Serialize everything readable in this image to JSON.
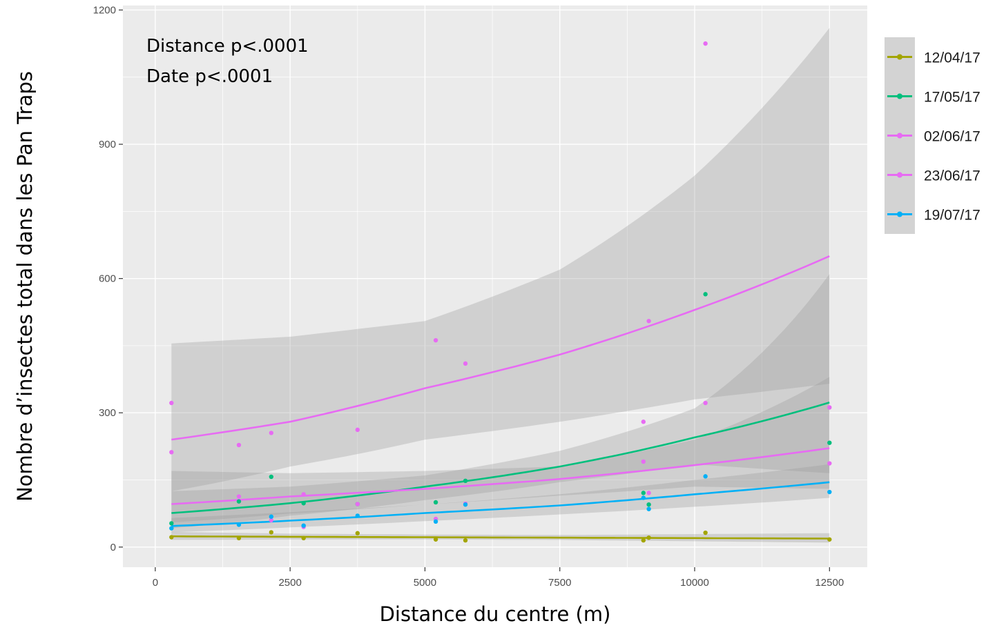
{
  "chart_data": {
    "type": "line",
    "title": "",
    "xlabel": "Distance du centre (m)",
    "ylabel": "Nombre d’insectes total dans les Pan Traps",
    "xlim": [
      -600,
      13200
    ],
    "ylim": [
      -45,
      1210
    ],
    "x_ticks": [
      0,
      2500,
      5000,
      7500,
      10000,
      12500
    ],
    "y_ticks": [
      0,
      300,
      600,
      900,
      1200
    ],
    "x_tick_labels": [
      "0",
      "2500",
      "5000",
      "7500",
      "10000",
      "12500"
    ],
    "y_tick_labels": [
      "0",
      "300",
      "600",
      "900",
      "1200"
    ],
    "grid": true,
    "legend_position": "right",
    "annotations": [
      "Distance p<.0001",
      "Date p<.0001"
    ],
    "series": [
      {
        "name": "12/04/17",
        "color": "#a3a500",
        "fit": {
          "x": [
            300,
            2500,
            5000,
            7500,
            10000,
            12500
          ],
          "y": [
            24,
            23,
            22,
            21,
            20,
            19
          ]
        },
        "ci_upper": [
          34,
          30,
          28,
          27,
          29,
          31
        ],
        "ci_lower": [
          16,
          17,
          17,
          16,
          13,
          10
        ],
        "points": {
          "x": [
            300,
            1550,
            2150,
            2750,
            3750,
            5200,
            5750,
            9050,
            9150,
            10200,
            12500
          ],
          "y": [
            22,
            20,
            33,
            20,
            31,
            17,
            15,
            15,
            21,
            32,
            17
          ]
        }
      },
      {
        "name": "17/05/17",
        "color": "#00bf7d",
        "fit": {
          "x": [
            300,
            2500,
            5000,
            7500,
            10000,
            12500
          ],
          "y": [
            76,
            98,
            135,
            180,
            245,
            323
          ]
        },
        "ci_upper": [
          125,
          135,
          160,
          215,
          310,
          610
        ],
        "ci_lower": [
          42,
          70,
          105,
          145,
          185,
          165
        ],
        "points": {
          "x": [
            300,
            1550,
            2150,
            2750,
            3750,
            5200,
            5750,
            9050,
            9150,
            10200,
            12500
          ],
          "y": [
            53,
            102,
            157,
            98,
            96,
            100,
            148,
            121,
            95,
            565,
            233
          ]
        }
      },
      {
        "name": "02/06/17",
        "color": "#e76bf3",
        "fit": {
          "x": [
            300,
            2500,
            5000,
            7500,
            10000,
            12500
          ],
          "y": [
            96,
            113,
            130,
            152,
            183,
            221
          ]
        },
        "ci_upper": [
          170,
          165,
          170,
          180,
          240,
          380
        ],
        "ci_lower": [
          55,
          75,
          95,
          115,
          135,
          130
        ],
        "points": {
          "x": [
            300,
            1550,
            2150,
            2750,
            3750,
            5200,
            5750,
            9050,
            9150,
            10200,
            12500
          ],
          "y": [
            212,
            113,
            60,
            45,
            96,
            63,
            97,
            191,
            121,
            322,
            187
          ]
        }
      },
      {
        "name": "23/06/17",
        "color": "#e76bf3",
        "fit": {
          "x": [
            300,
            2500,
            5000,
            7500,
            10000,
            12500
          ],
          "y": [
            240,
            280,
            355,
            430,
            530,
            650
          ]
        },
        "ci_upper": [
          455,
          470,
          505,
          620,
          830,
          1160
        ],
        "ci_lower": [
          125,
          180,
          240,
          280,
          330,
          365
        ],
        "points": {
          "x": [
            300,
            1550,
            2150,
            2750,
            3750,
            5200,
            5750,
            9050,
            9150,
            10200,
            12500
          ],
          "y": [
            322,
            228,
            255,
            118,
            262,
            462,
            410,
            280,
            505,
            1125,
            312
          ]
        }
      },
      {
        "name": "19/07/17",
        "color": "#00b0f6",
        "fit": {
          "x": [
            300,
            2500,
            5000,
            7500,
            10000,
            12500
          ],
          "y": [
            47,
            59,
            76,
            93,
            118,
            145
          ]
        },
        "ci_upper": [
          65,
          78,
          95,
          118,
          150,
          185
        ],
        "ci_lower": [
          33,
          44,
          58,
          73,
          90,
          110
        ],
        "points": {
          "x": [
            300,
            1550,
            2150,
            2750,
            3750,
            5200,
            5750,
            9050,
            9150,
            10200,
            12500
          ],
          "y": [
            42,
            50,
            68,
            48,
            70,
            57,
            95,
            110,
            85,
            158,
            123
          ]
        }
      }
    ]
  },
  "colors": {
    "panel_background": "#ebebeb",
    "grid": "#ffffff",
    "ci_band": "#999999",
    "legend_background": "#d3d3d3"
  }
}
